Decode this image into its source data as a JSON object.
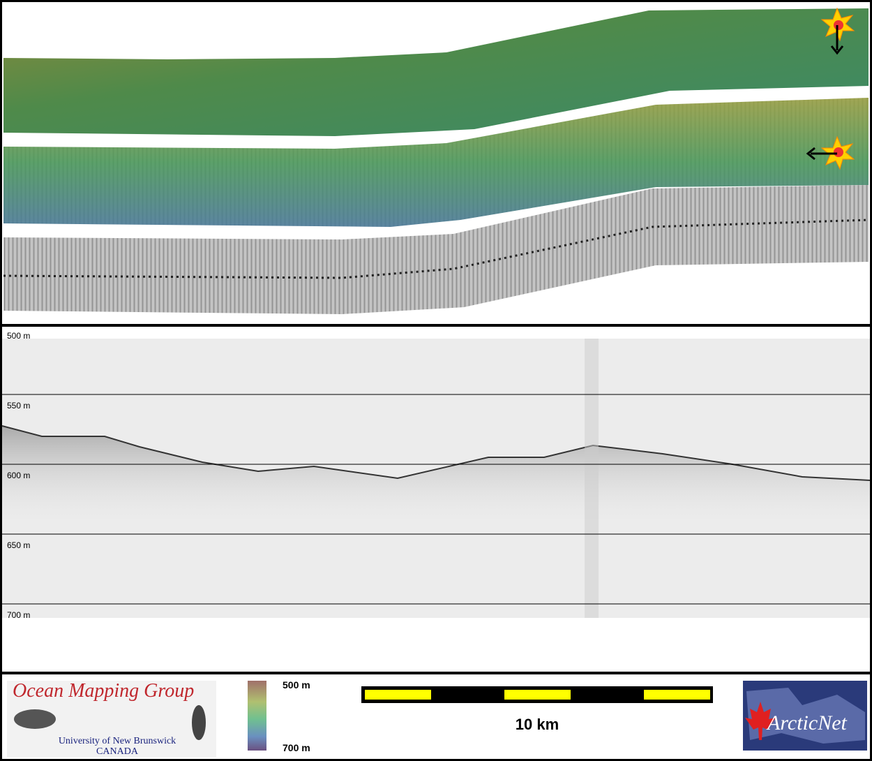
{
  "profile": {
    "depth_labels": [
      "500 m",
      "550 m",
      "600 m",
      "650 m",
      "700 m"
    ]
  },
  "footer": {
    "group": "Ocean Mapping Group",
    "university": "University of New Brunswick",
    "country": "CANADA",
    "colorbar": {
      "top": "500 m",
      "bottom": "700 m"
    },
    "scale": "10 km",
    "partner": "ArcticNet"
  }
}
